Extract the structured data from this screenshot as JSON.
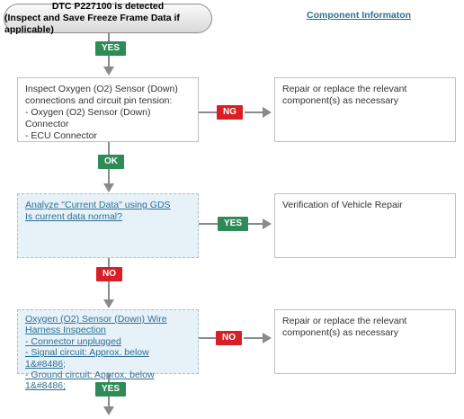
{
  "start": {
    "line1": "DTC P227100 is detected",
    "line2": "(Inspect and Save Freeze Frame Data if applicable)"
  },
  "component_link": "Component Informaton",
  "labels": {
    "yes": "YES",
    "no": "NO",
    "ok": "OK",
    "ng": "NG"
  },
  "step1": {
    "lines": [
      "Inspect Oxygen (O2) Sensor (Down)",
      "connections and circuit pin tension:",
      "- Oxygen (O2) Sensor (Down)",
      "Connector",
      "- ECU Connector"
    ],
    "ng_result": [
      "Repair or replace the relevant",
      "component(s) as necessary"
    ]
  },
  "step2": {
    "lines": [
      "Analyze \"Current Data\" using GDS",
      "Is current data normal?"
    ],
    "yes_result": "Verification of Vehicle Repair"
  },
  "step3": {
    "lines": [
      "Oxygen (O2) Sensor (Down) Wire",
      "Harness Inspection",
      "- Connector unplugged",
      "- Signal circuit: Approx. below 1&#8486;",
      "- Ground circuit: Approx. below 1&#8486;"
    ],
    "no_result": [
      "Repair or replace the relevant",
      "component(s) as necessary"
    ]
  },
  "colors": {
    "yes_ok_badge": "#2e8b57",
    "no_ng_badge": "#d81f26",
    "link": "#2f6f95",
    "connector": "#8a8a8a",
    "highlight_box": "#e6f1f8"
  }
}
